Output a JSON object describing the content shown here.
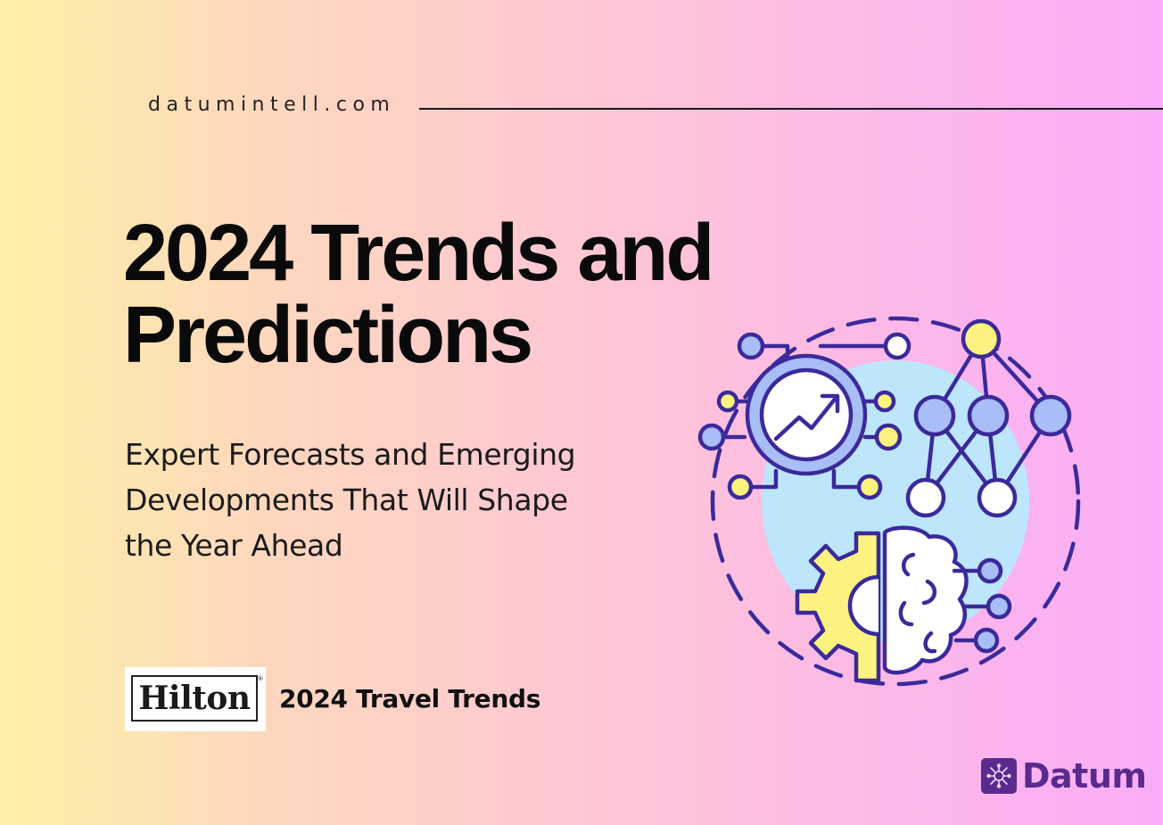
{
  "header": {
    "site": "datumintell.com"
  },
  "hero": {
    "title_line1": "2024 Trends and",
    "title_line2": "Predictions",
    "subtitle_line1": "Expert Forecasts and Emerging",
    "subtitle_line2": "Developments That Will Shape",
    "subtitle_line3": "the Year Ahead"
  },
  "partner": {
    "logo_text": "Hilton",
    "caption": "2024 Travel Trends"
  },
  "brand": {
    "name": "Datum"
  },
  "colors": {
    "accent_purple": "#5b2a8d",
    "outline": "#3b2a9a",
    "node_blue": "#a9bdf7",
    "node_yellow": "#fbf27f",
    "bubble_blue": "#bde6fc"
  },
  "icons": {
    "illustration": "analytics-network-brain-gear-icon",
    "brand": "network-chip-icon"
  }
}
